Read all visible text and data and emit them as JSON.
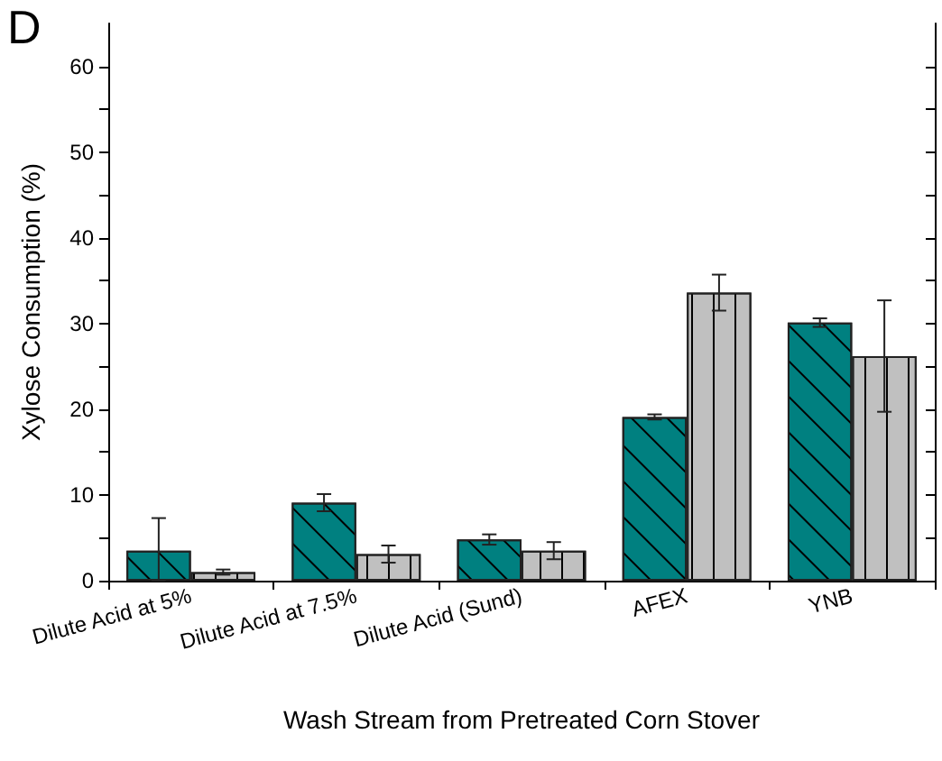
{
  "chart_data": {
    "type": "bar",
    "categories": [
      "Dilute Acid at 5%",
      "Dilute Acid at 7.5%",
      "Dilute Acid (Sund)",
      "AFEX",
      "YNB"
    ],
    "series": [
      {
        "color": "#008080",
        "values": [
          3.5,
          9.1,
          4.8,
          19.1,
          30.1
        ],
        "errors": [
          [
            0,
            7.3
          ],
          1.0,
          0.6,
          0.3,
          0.5
        ]
      },
      {
        "color": "#c0c0c0",
        "values": [
          1.0,
          3.1,
          3.5,
          33.6,
          26.2
        ],
        "errors": [
          0.3,
          1.0,
          1.0,
          2.1,
          6.5
        ]
      }
    ],
    "ylabel": "Xylose Consumption (%)",
    "xlabel": "Wash Stream from Pretreated Corn Stover",
    "annotations": [
      "D"
    ],
    "ylim": [
      0,
      65
    ],
    "yticks": [
      0,
      {
        "value": 5,
        "label": null
      },
      10,
      {
        "value": 15,
        "label": null
      },
      20,
      {
        "value": 25,
        "label": null
      },
      30,
      {
        "value": 35,
        "label": null
      },
      40,
      {
        "value": 45,
        "label": null
      },
      50,
      {
        "value": 55,
        "label": null
      },
      60
    ],
    "grid": false
  }
}
